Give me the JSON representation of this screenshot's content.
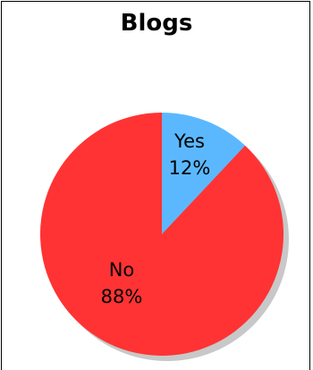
{
  "chart_data": {
    "type": "pie",
    "title": "Blogs",
    "slices": [
      {
        "label": "Yes",
        "value": 12,
        "value_label": "12%",
        "color": "#5bb8ff"
      },
      {
        "label": "No",
        "value": 88,
        "value_label": "88%",
        "color": "#ff3333"
      }
    ],
    "start": "top",
    "direction": "clockwise",
    "shadow": true,
    "shadow_color": "#c8c8c8",
    "legend": "none"
  }
}
